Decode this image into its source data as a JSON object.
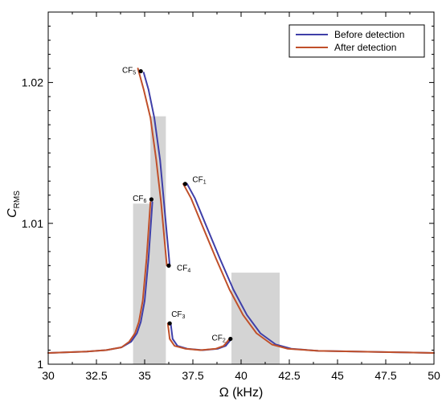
{
  "chart_data": {
    "type": "line",
    "xlabel": "Ω (kHz)",
    "ylabel_main": "C",
    "ylabel_sub": "RMS",
    "xlim": [
      30,
      50
    ],
    "ylim": [
      1.0,
      1.025
    ],
    "xticks": [
      30,
      32.5,
      35,
      37.5,
      40,
      42.5,
      45,
      47.5,
      50
    ],
    "xtick_labels": [
      "30",
      "32.5",
      "35",
      "37.5",
      "40",
      "42.5",
      "45",
      "47.5",
      "50"
    ],
    "yticks": [
      1.0,
      1.01,
      1.02
    ],
    "ytick_labels": [
      "1",
      "1.01",
      "1.02"
    ],
    "legend_position": "top-right",
    "grid": false,
    "colors": {
      "before": "#3f3fa8",
      "after": "#c0502a",
      "bars": "#d4d4d4",
      "points": "#000000"
    },
    "shaded_regions": [
      {
        "x0": 34.4,
        "x1": 35.5,
        "y": 1.0114
      },
      {
        "x0": 35.3,
        "x1": 36.1,
        "y": 1.0176
      },
      {
        "x0": 39.5,
        "x1": 42.0,
        "y": 1.0065
      }
    ],
    "series": [
      {
        "name": "Before detection",
        "color_key": "before",
        "segments": [
          [
            [
              30,
              1.0008
            ],
            [
              31,
              1.00085
            ],
            [
              32,
              1.0009
            ],
            [
              33,
              1.001
            ],
            [
              33.8,
              1.0012
            ],
            [
              34.3,
              1.0016
            ],
            [
              34.6,
              1.0022
            ],
            [
              34.8,
              1.003
            ],
            [
              35.0,
              1.0045
            ],
            [
              35.2,
              1.0075
            ],
            [
              35.4,
              1.0115
            ]
          ],
          [
            [
              34.95,
              1.0207
            ],
            [
              35.2,
              1.0195
            ],
            [
              35.5,
              1.0175
            ],
            [
              35.8,
              1.0145
            ],
            [
              36.0,
              1.0115
            ],
            [
              36.2,
              1.0085
            ],
            [
              36.3,
              1.007
            ]
          ],
          [
            [
              36.35,
              1.0029
            ],
            [
              36.45,
              1.0018
            ],
            [
              36.7,
              1.0013
            ],
            [
              37.2,
              1.0011
            ],
            [
              38.0,
              1.001
            ],
            [
              38.8,
              1.0011
            ],
            [
              39.2,
              1.0013
            ],
            [
              39.5,
              1.0018
            ]
          ],
          [
            [
              37.2,
              1.0128
            ],
            [
              37.6,
              1.0118
            ],
            [
              38.2,
              1.0098
            ],
            [
              38.9,
              1.0075
            ],
            [
              39.6,
              1.0053
            ],
            [
              40.3,
              1.0035
            ],
            [
              41.0,
              1.0022
            ],
            [
              41.8,
              1.0014
            ],
            [
              42.6,
              1.0011
            ],
            [
              44.0,
              1.00095
            ],
            [
              46.0,
              1.0009
            ],
            [
              48.0,
              1.00085
            ],
            [
              50,
              1.0008
            ]
          ]
        ]
      },
      {
        "name": "After detection",
        "color_key": "after",
        "segments": [
          [
            [
              30,
              1.0008
            ],
            [
              31,
              1.00085
            ],
            [
              32,
              1.0009
            ],
            [
              33,
              1.001
            ],
            [
              33.8,
              1.0012
            ],
            [
              34.2,
              1.0016
            ],
            [
              34.5,
              1.0022
            ],
            [
              34.7,
              1.003
            ],
            [
              34.9,
              1.0045
            ],
            [
              35.1,
              1.0075
            ],
            [
              35.3,
              1.0115
            ]
          ],
          [
            [
              34.65,
              1.021
            ],
            [
              34.95,
              1.0195
            ],
            [
              35.3,
              1.0175
            ],
            [
              35.6,
              1.0145
            ],
            [
              35.85,
              1.0115
            ],
            [
              36.05,
              1.0085
            ],
            [
              36.15,
              1.007
            ]
          ],
          [
            [
              36.2,
              1.0029
            ],
            [
              36.3,
              1.0018
            ],
            [
              36.55,
              1.0013
            ],
            [
              37.1,
              1.0011
            ],
            [
              37.9,
              1.001
            ],
            [
              38.7,
              1.0011
            ],
            [
              39.1,
              1.0013
            ],
            [
              39.4,
              1.0018
            ]
          ],
          [
            [
              37.0,
              1.0128
            ],
            [
              37.4,
              1.0118
            ],
            [
              38.0,
              1.0098
            ],
            [
              38.7,
              1.0075
            ],
            [
              39.4,
              1.0053
            ],
            [
              40.1,
              1.0035
            ],
            [
              40.8,
              1.0022
            ],
            [
              41.6,
              1.0014
            ],
            [
              42.4,
              1.0011
            ],
            [
              44.0,
              1.00095
            ],
            [
              46.0,
              1.0009
            ],
            [
              48.0,
              1.00085
            ],
            [
              50,
              1.0008
            ]
          ]
        ]
      }
    ],
    "critical_points": [
      {
        "label": "CF",
        "sub": "1",
        "x": 37.1,
        "y": 1.0128,
        "anchor": "right"
      },
      {
        "label": "CF",
        "sub": "2",
        "x": 39.45,
        "y": 1.0018,
        "anchor": "left"
      },
      {
        "label": "CF",
        "sub": "3",
        "x": 36.3,
        "y": 1.0029,
        "anchor": "right-above"
      },
      {
        "label": "CF",
        "sub": "4",
        "x": 36.25,
        "y": 1.007,
        "anchor": "right-below"
      },
      {
        "label": "CF",
        "sub": "5",
        "x": 34.8,
        "y": 1.0208,
        "anchor": "left"
      },
      {
        "label": "CF",
        "sub": "6",
        "x": 35.35,
        "y": 1.0117,
        "anchor": "left"
      }
    ]
  }
}
